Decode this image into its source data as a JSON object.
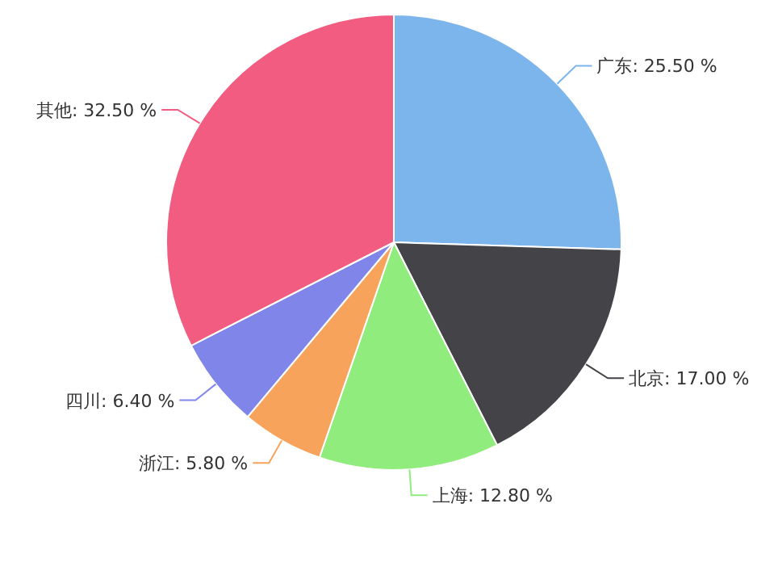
{
  "chart_data": {
    "type": "pie",
    "categories": [
      "广东",
      "北京",
      "上海",
      "浙江",
      "四川",
      "其他"
    ],
    "values": [
      25.5,
      17.0,
      12.8,
      5.8,
      6.4,
      32.5
    ],
    "value_labels": [
      "25.50 %",
      "17.00 %",
      "12.80 %",
      "5.80 %",
      "6.40 %",
      "32.50 %"
    ],
    "colors": [
      "#7cb5ec",
      "#434348",
      "#90ed7d",
      "#f7a35c",
      "#8085e9",
      "#f15c80"
    ]
  }
}
